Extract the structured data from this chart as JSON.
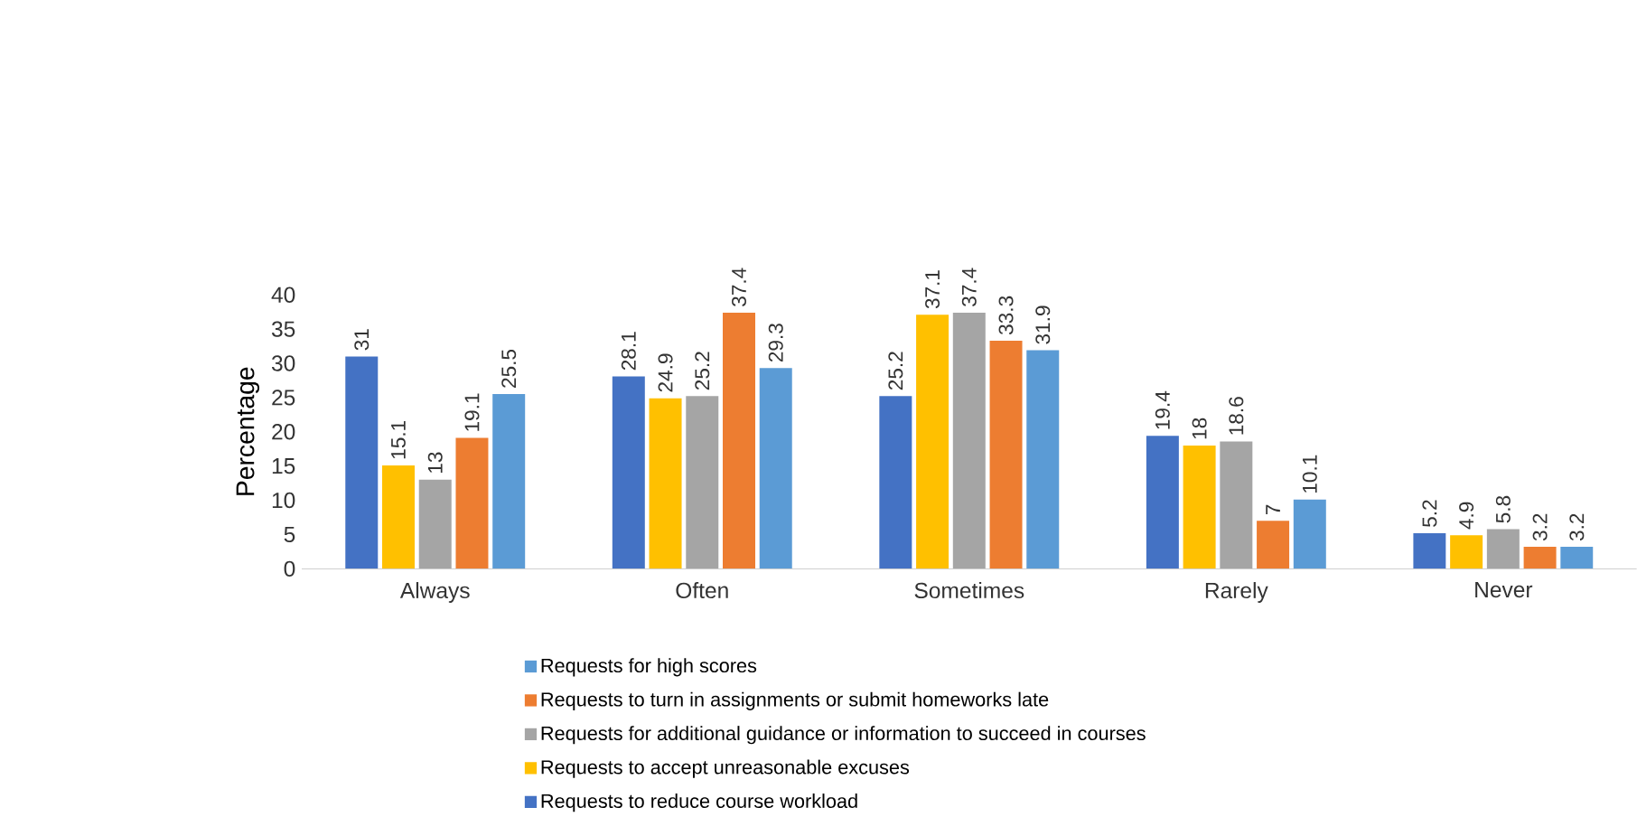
{
  "chart_data": {
    "type": "bar",
    "ylabel": "Percentage",
    "categories": [
      "Always",
      "Often",
      "Sometimes",
      "Rarely",
      "Never"
    ],
    "series": [
      {
        "name": "Requests to reduce course workload",
        "color": "#4472c4",
        "values": [
          31,
          28.1,
          25.2,
          19.4,
          5.2
        ]
      },
      {
        "name": "Requests to accept unreasonable excuses",
        "color": "#ffc000",
        "values": [
          15.1,
          24.9,
          37.1,
          18,
          4.9
        ]
      },
      {
        "name": "Requests for additional guidance or information to succeed in courses",
        "color": "#a5a5a5",
        "values": [
          13,
          25.2,
          37.4,
          18.6,
          5.8
        ]
      },
      {
        "name": "Requests to turn in assignments or submit homeworks late",
        "color": "#ed7d31",
        "values": [
          19.1,
          37.4,
          33.3,
          7,
          3.2
        ]
      },
      {
        "name": "Requests for high scores",
        "color": "#5b9bd5",
        "values": [
          25.5,
          29.3,
          31.9,
          10.1,
          3.2
        ]
      }
    ],
    "ylim": [
      0,
      40
    ],
    "yticks": [
      0,
      5,
      10,
      15,
      20,
      25,
      30,
      35,
      40
    ],
    "data_labels": true,
    "legend": "bottom"
  }
}
